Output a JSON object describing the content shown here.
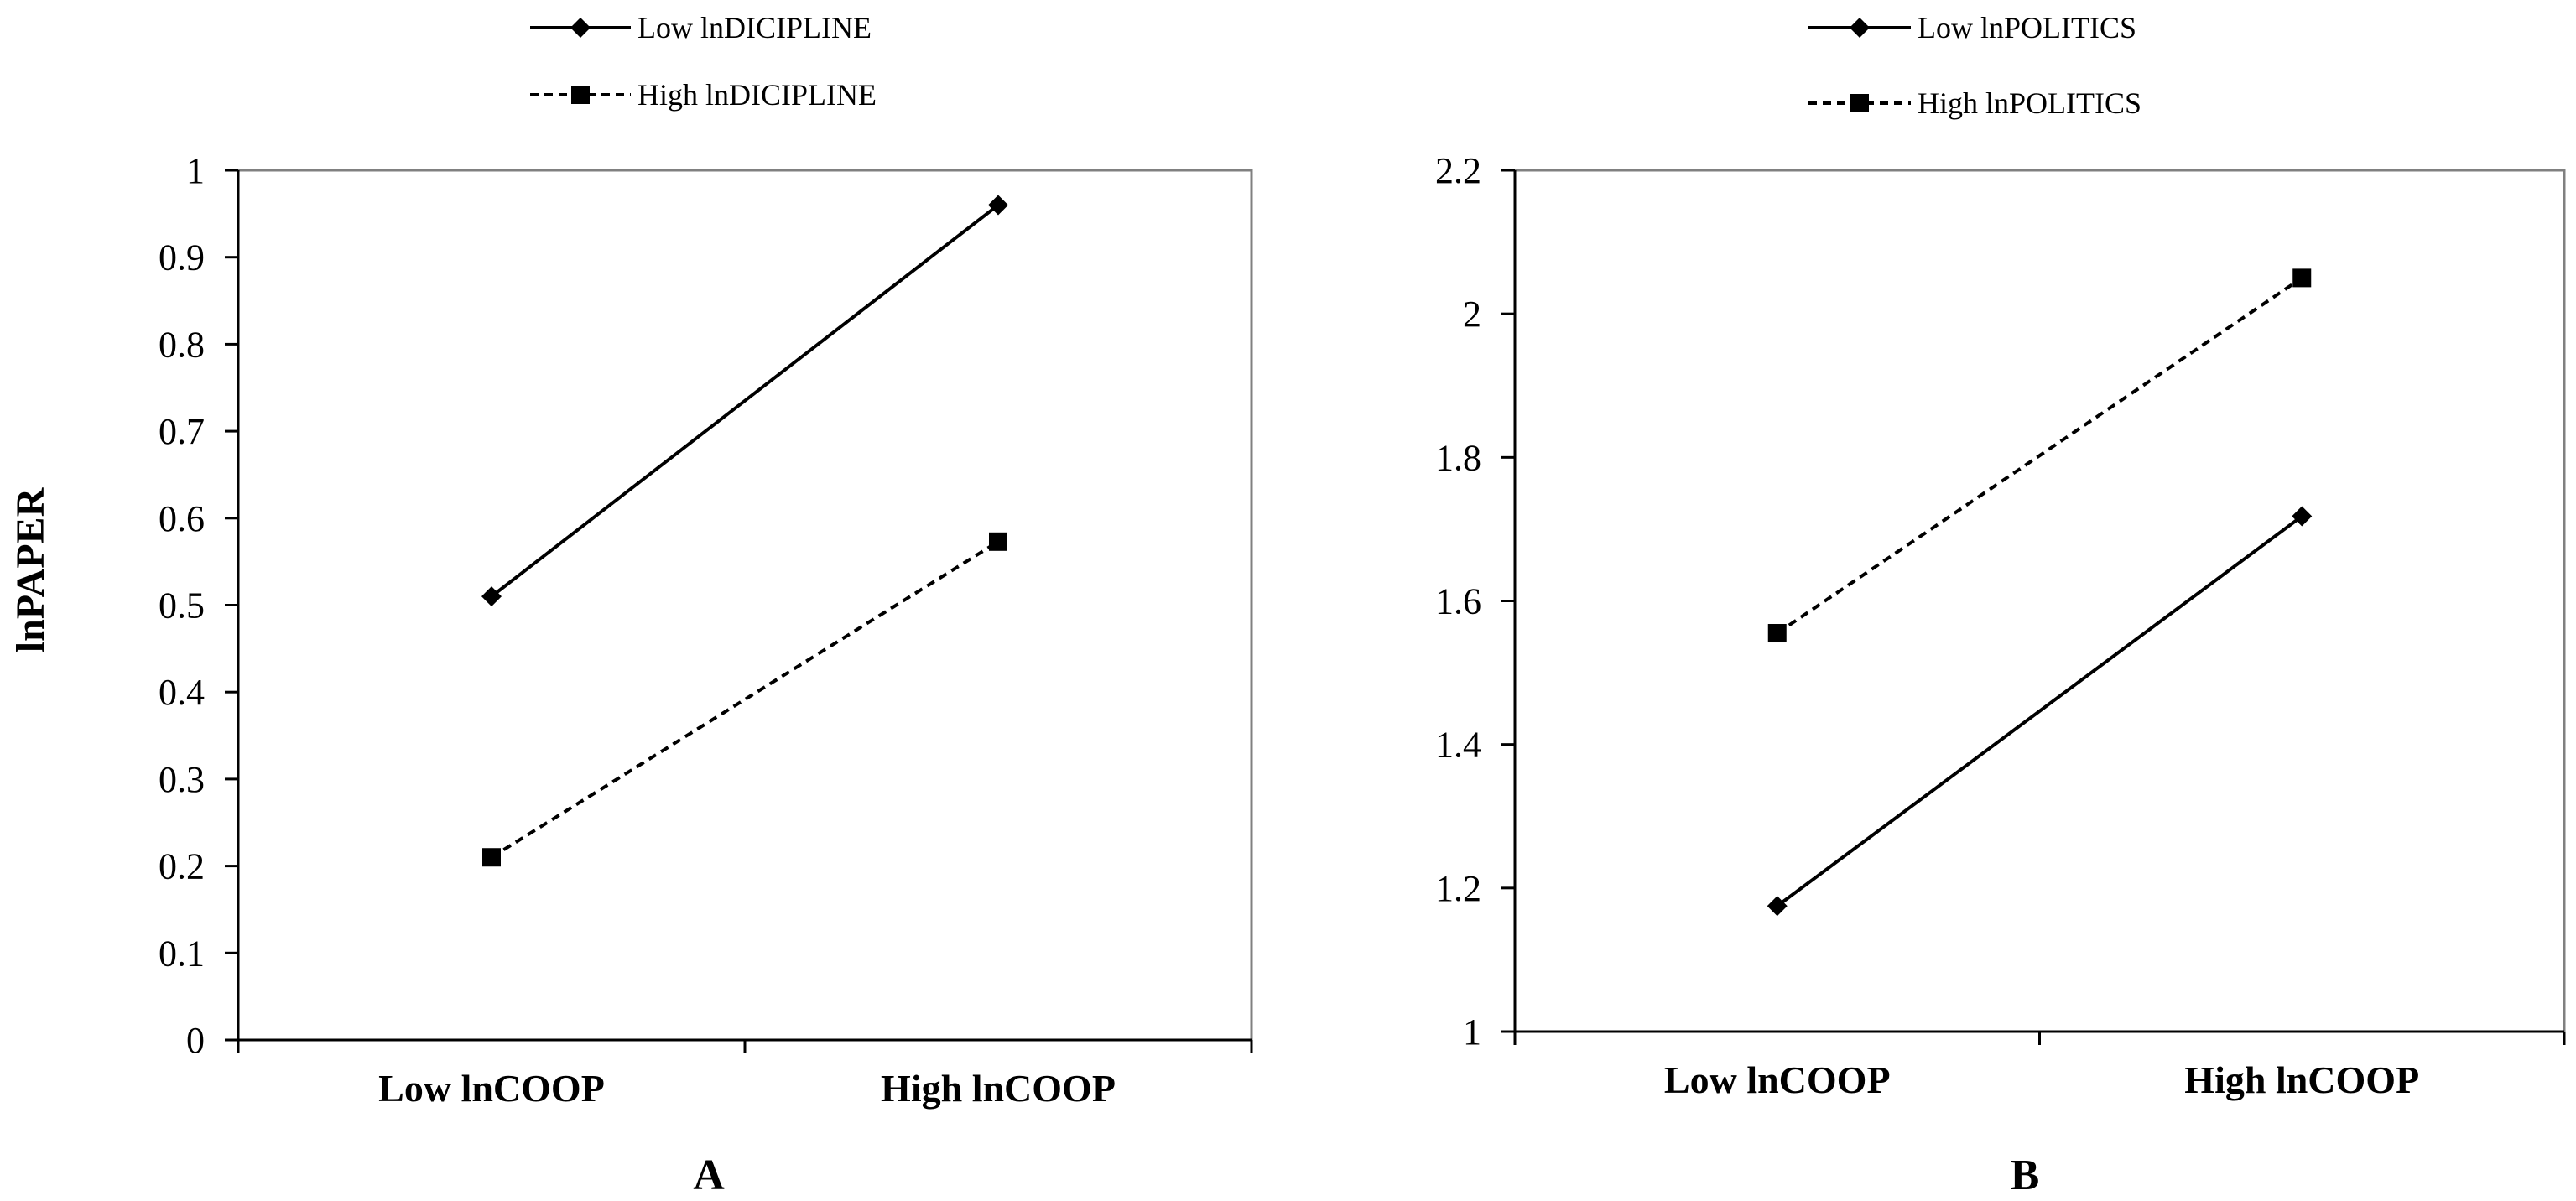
{
  "chart_data": [
    {
      "type": "line",
      "panel_label": "A",
      "ylabel": "lnPAPER",
      "xlabel": "",
      "categories": [
        "Low lnCOOP",
        "High lnCOOP"
      ],
      "ylim": [
        0,
        1
      ],
      "yticks": [
        "0",
        "0.1",
        "0.2",
        "0.3",
        "0.4",
        "0.5",
        "0.6",
        "0.7",
        "0.8",
        "0.9",
        "1"
      ],
      "legend_position": "top-center",
      "series": [
        {
          "name": "Low lnDICIPLINE",
          "values": [
            0.51,
            0.96
          ],
          "style": "solid",
          "marker": "diamond"
        },
        {
          "name": "High lnDICIPLINE",
          "values": [
            0.21,
            0.573
          ],
          "style": "dashed",
          "marker": "square"
        }
      ]
    },
    {
      "type": "line",
      "panel_label": "B",
      "ylabel": "",
      "xlabel": "",
      "categories": [
        "Low lnCOOP",
        "High lnCOOP"
      ],
      "ylim": [
        1,
        2.2
      ],
      "yticks": [
        "1",
        "1.2",
        "1.4",
        "1.6",
        "1.8",
        "2",
        "2.2"
      ],
      "legend_position": "top-center",
      "series": [
        {
          "name": "Low lnPOLITICS",
          "values": [
            1.175,
            1.718
          ],
          "style": "solid",
          "marker": "diamond"
        },
        {
          "name": "High lnPOLITICS",
          "values": [
            1.555,
            2.05
          ],
          "style": "dashed",
          "marker": "square"
        }
      ]
    }
  ],
  "colors": {
    "line": "#000000",
    "axis": "#808080"
  }
}
